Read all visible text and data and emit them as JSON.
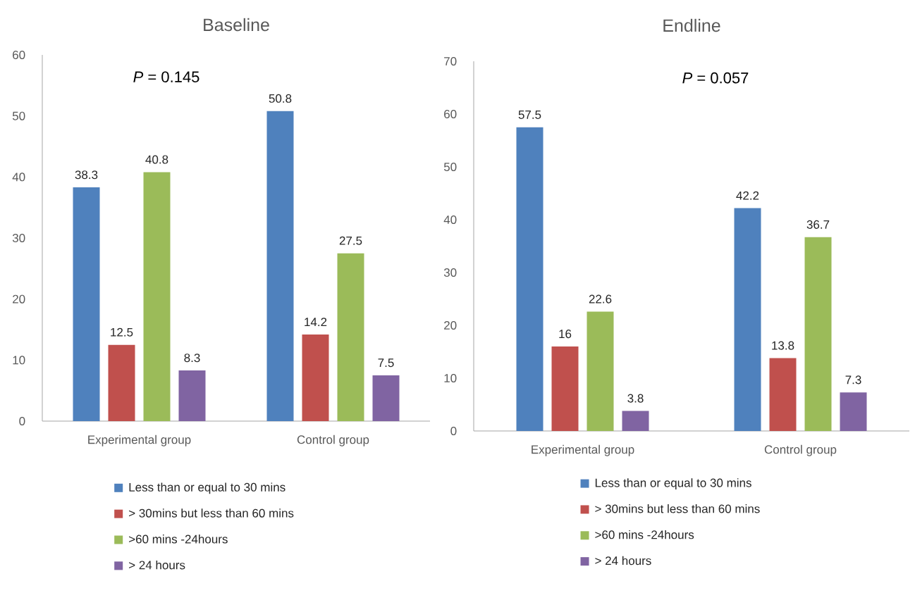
{
  "chart_data": [
    {
      "type": "bar",
      "title": "Baseline",
      "categories": [
        "Experimental group",
        "Control group"
      ],
      "series": [
        {
          "name": "Less than or equal to 30 mins",
          "color": "#4f81bd",
          "values": [
            38.3,
            50.8
          ]
        },
        {
          "name": "> 30mins but less than 60 mins",
          "color": "#c0504d",
          "values": [
            12.5,
            14.2
          ]
        },
        {
          "name": ">60 mins -24hours",
          "color": "#9bbb59",
          "values": [
            40.8,
            27.5
          ]
        },
        {
          "name": "> 24 hours",
          "color": "#8064a2",
          "values": [
            8.3,
            7.5
          ]
        }
      ],
      "ylim": [
        0,
        60
      ],
      "yticks": [
        0,
        10,
        20,
        30,
        40,
        50,
        60
      ],
      "data_labels": true,
      "legend": "bottom",
      "grid": false,
      "annotations": [
        "*P* = 0.145"
      ]
    },
    {
      "type": "bar",
      "title": "Endline",
      "categories": [
        "Experimental group",
        "Control group"
      ],
      "series": [
        {
          "name": "Less than or equal to 30 mins",
          "color": "#4f81bd",
          "values": [
            57.5,
            42.2
          ]
        },
        {
          "name": "> 30mins but less than 60 mins",
          "color": "#c0504d",
          "values": [
            16,
            13.8
          ]
        },
        {
          "name": ">60 mins -24hours",
          "color": "#9bbb59",
          "values": [
            22.6,
            36.7
          ]
        },
        {
          "name": "> 24 hours",
          "color": "#8064a2",
          "values": [
            3.8,
            7.3
          ]
        }
      ],
      "ylim": [
        0,
        70
      ],
      "yticks": [
        0,
        10,
        20,
        30,
        40,
        50,
        60,
        70
      ],
      "data_labels": true,
      "legend": "bottom",
      "grid": false,
      "annotations": [
        "*P* = 0.057"
      ]
    }
  ]
}
